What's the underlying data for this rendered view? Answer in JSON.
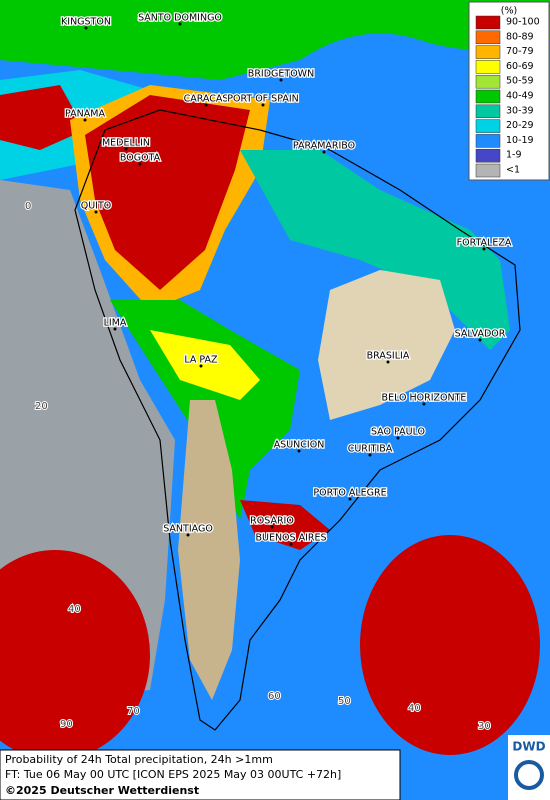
{
  "legend": {
    "title": "(%)",
    "items": [
      {
        "label": "90-100",
        "color": "#c80000"
      },
      {
        "label": "80-89",
        "color": "#ff6a00"
      },
      {
        "label": "70-79",
        "color": "#ffb400"
      },
      {
        "label": "60-69",
        "color": "#ffff00"
      },
      {
        "label": "50-59",
        "color": "#a0e632"
      },
      {
        "label": "40-49",
        "color": "#00c800"
      },
      {
        "label": "30-39",
        "color": "#00c8a0"
      },
      {
        "label": "20-29",
        "color": "#00d2e6"
      },
      {
        "label": "10-19",
        "color": "#1e8cff"
      },
      {
        "label": "1-9",
        "color": "#4646c8"
      },
      {
        "label": "<1",
        "color": "#b4b4b4"
      }
    ]
  },
  "cities": [
    "KINGSTON",
    "SANTO DOMINGO",
    "BRIDGETOWN",
    "CARACAS",
    "PORT OF SPAIN",
    "PANAMA",
    "MEDELLIN",
    "BOGOTA",
    "PARAMARIBO",
    "QUITO",
    "FORTALEZA",
    "LIMA",
    "SALVADOR",
    "LA PAZ",
    "BRASILIA",
    "BELO HORIZONTE",
    "SAO PAULO",
    "ASUNCION",
    "CURITIBA",
    "PORTO ALEGRE",
    "ROSARIO",
    "SANTIAGO",
    "BUENOS AIRES"
  ],
  "grid_labels": [
    0,
    20,
    40,
    90,
    70,
    60,
    50,
    40,
    30
  ],
  "footer": {
    "line1": "Probability of 24h Total precipitation, 24h >1mm",
    "line2": "FT: Tue 06 May 00 UTC [ICON EPS 2025 May 03 00UTC +72h]",
    "line3": "©2025 Deutscher Wetterdienst"
  },
  "logo": "DWD"
}
